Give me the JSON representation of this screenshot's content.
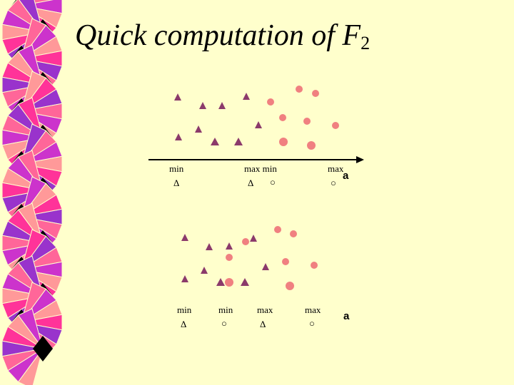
{
  "slide": {
    "title_main": "Quick computation of F",
    "title_sub": "2"
  },
  "colors": {
    "background": "#ffffcc",
    "triangle": "#8b3a6b",
    "circle": "#f08080",
    "fan_colors": [
      "#ff3399",
      "#9933cc",
      "#ff6699",
      "#cc33cc",
      "#ff9999"
    ]
  },
  "icons": {
    "triangle_marker": "triangle-marker",
    "circle_marker": "circle-marker",
    "delta_symbol": "delta-symbol",
    "circle_symbol": "circle-symbol"
  },
  "top_group": {
    "labels": [
      "min",
      "max min",
      "max"
    ],
    "symbols": [
      "Δ",
      "Δ",
      "○",
      "○"
    ],
    "axis_symbol": "a"
  },
  "bottom_group": {
    "labels": [
      "min",
      "min",
      "max",
      "max"
    ],
    "symbols": [
      "Δ",
      "○",
      "Δ",
      "○"
    ],
    "axis_symbol": "a"
  }
}
